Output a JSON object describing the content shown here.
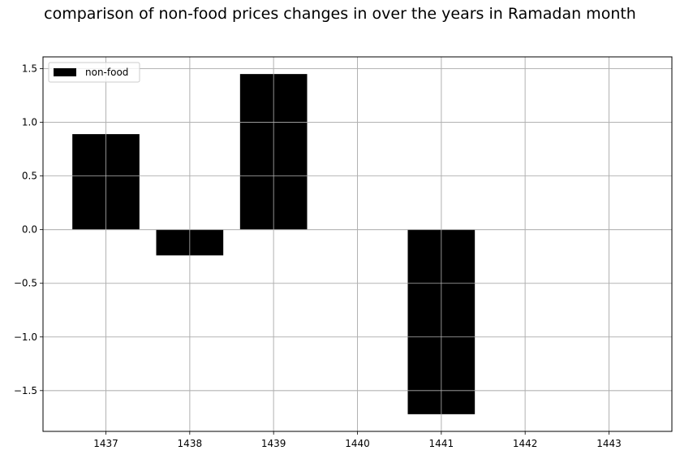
{
  "chart_data": {
    "type": "bar",
    "title": "comparison of non-food prices changes in over the years in Ramadan month",
    "xlabel": "",
    "ylabel": "",
    "categories": [
      "1437",
      "1438",
      "1439",
      "1440",
      "1441",
      "1442",
      "1443"
    ],
    "series": [
      {
        "name": "non-food",
        "color": "#000000",
        "values": [
          0.89,
          -0.24,
          1.45,
          0.0,
          -1.72,
          0.0,
          0.0
        ]
      }
    ],
    "xlim": [
      1436.25,
      1443.75
    ],
    "ylim": [
      -1.88,
      1.61
    ],
    "yticks": [
      "−1.5",
      "−1.0",
      "−0.5",
      "0.0",
      "0.5",
      "1.0",
      "1.5"
    ],
    "ytick_values": [
      -1.5,
      -1.0,
      -0.5,
      0.0,
      0.5,
      1.0,
      1.5
    ],
    "grid": true,
    "grid_color": "#b0b0b0",
    "legend_position": "top-left"
  }
}
